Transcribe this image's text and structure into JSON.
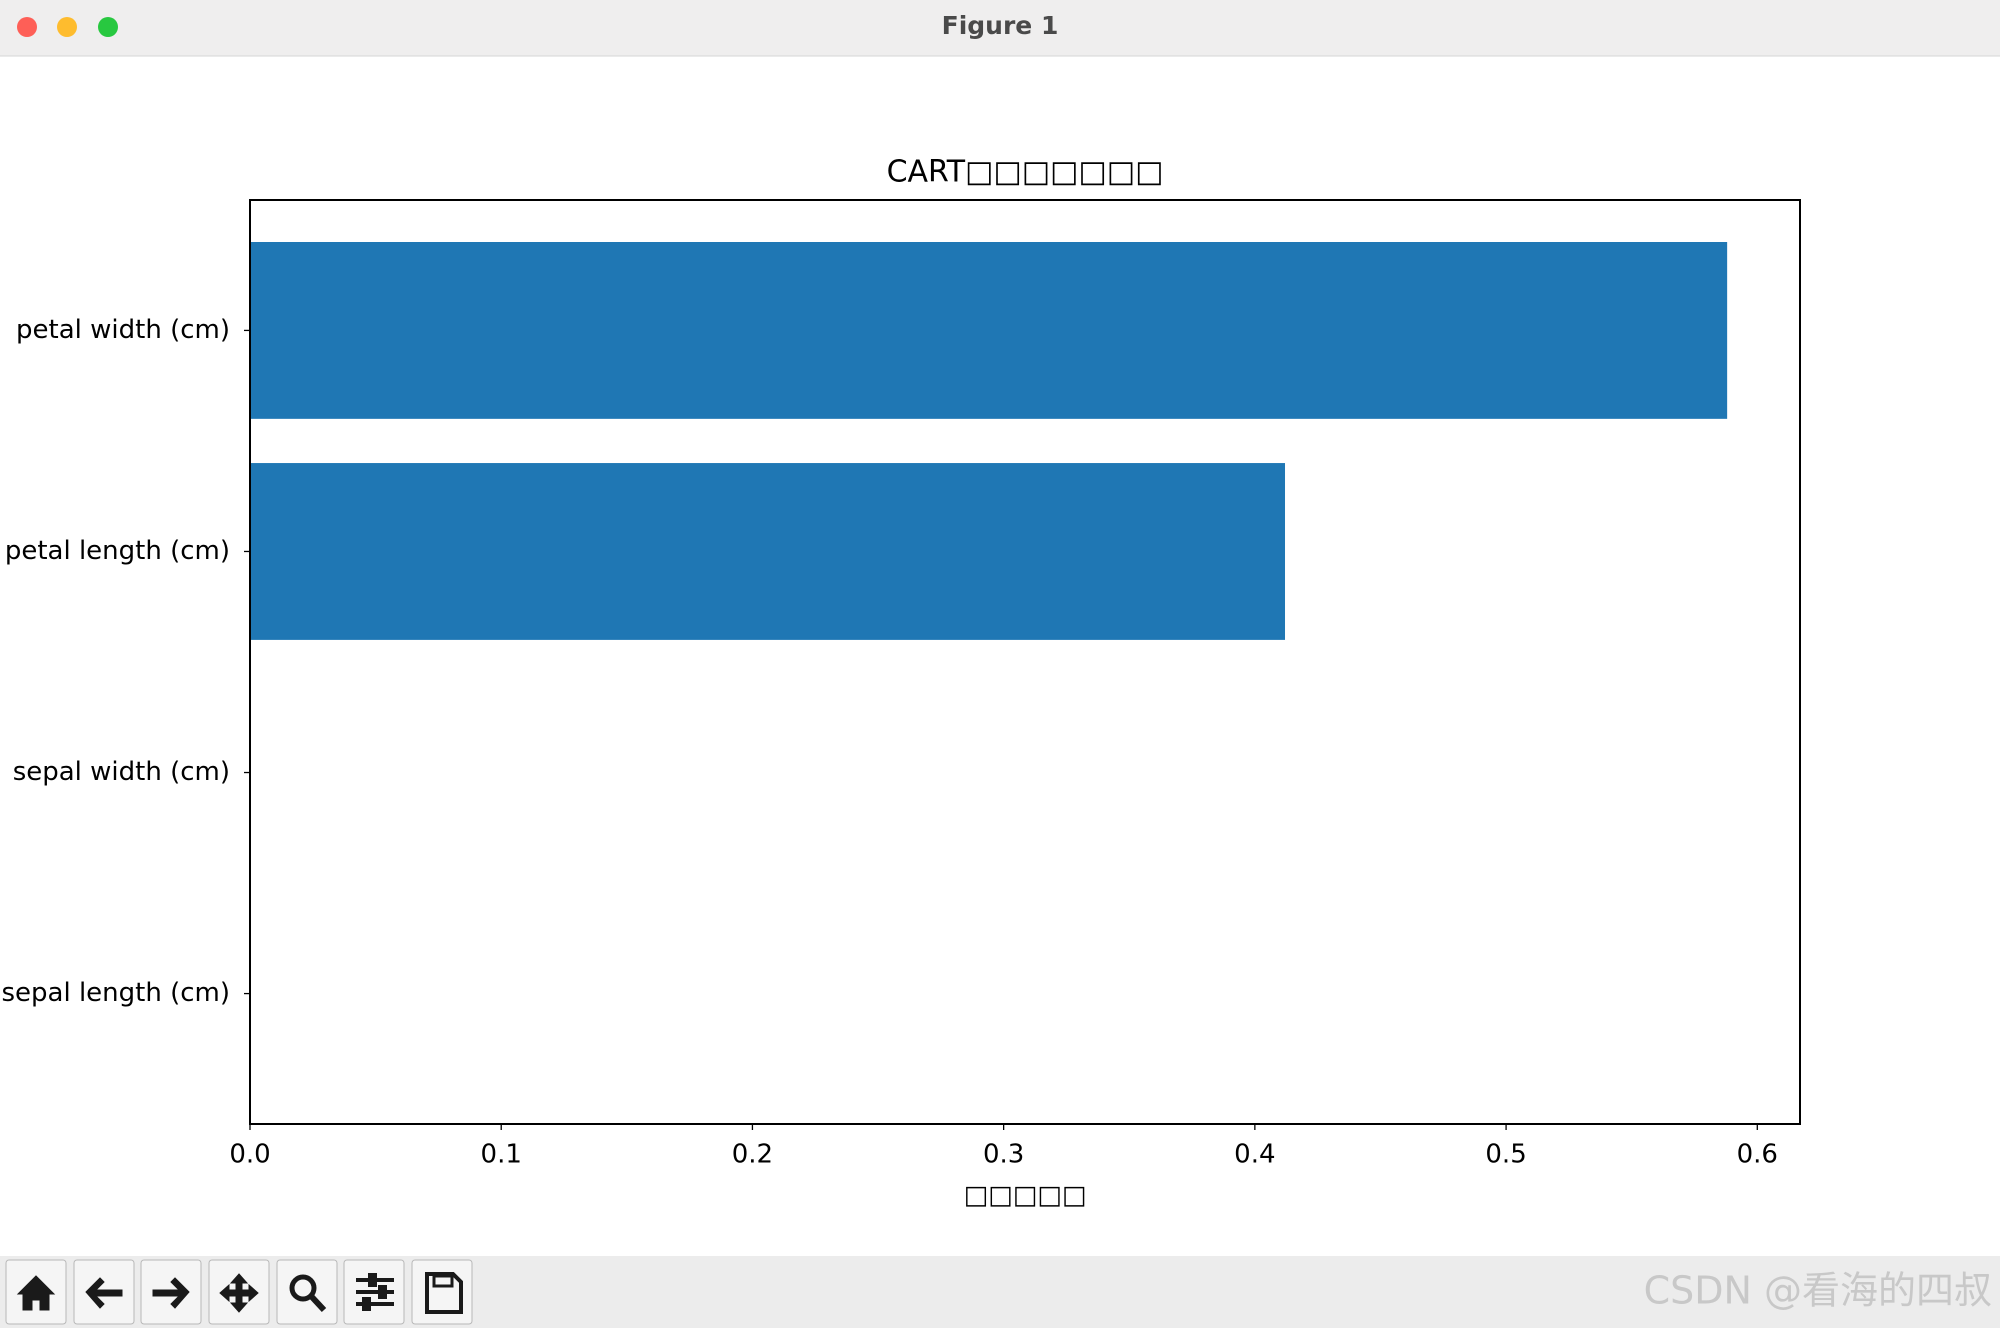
{
  "window": {
    "title": "Figure 1"
  },
  "chart_data": {
    "type": "barh",
    "title": "CART□□□□□□□",
    "xlabel": "□□□□□",
    "categories": [
      "sepal length (cm)",
      "sepal width (cm)",
      "petal length (cm)",
      "petal width (cm)"
    ],
    "values": [
      0,
      0,
      0.412,
      0.588
    ],
    "color": "#1f77b4",
    "xlim": [
      0,
      0.617
    ],
    "xticks": [
      {
        "value": 0,
        "label": "0.0"
      },
      0.1,
      0.2,
      0.3,
      0.4,
      0.5,
      0.6
    ],
    "grid": false
  },
  "watermark": "CSDN @看海的四叔"
}
